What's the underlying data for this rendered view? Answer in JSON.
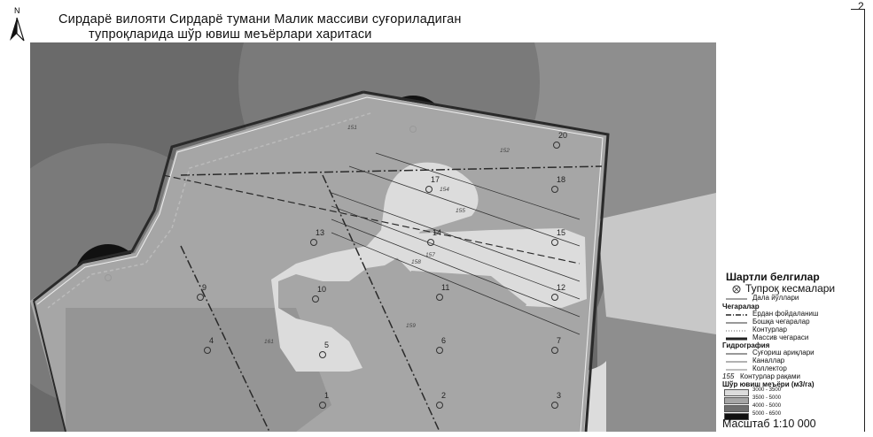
{
  "title": {
    "line1": "Сирдарё вилояти Сирдарё тумани Малик массиви суғориладиган",
    "line2": "тупроқларида шўр ювиш меъёрлари харитаси"
  },
  "north_label": "N",
  "page_number": "2",
  "map": {
    "point_labels": [
      "1",
      "2",
      "3",
      "4",
      "5",
      "6",
      "7",
      "9",
      "10",
      "11",
      "12",
      "13",
      "14",
      "15",
      "17",
      "18",
      "20"
    ],
    "contour_labels": [
      "151",
      "152",
      "154",
      "155",
      "157",
      "158",
      "159",
      "161"
    ],
    "fills": {
      "background": "#6a6a6a",
      "zone_light": "#dcdcdc",
      "zone_medium": "#a6a6a6",
      "zone_dark": "#6e6e6e",
      "zone_black": "#111111"
    }
  },
  "legend": {
    "title": "Шартли белгилар",
    "items": {
      "soil_pits": "Тупроқ кесмалари",
      "field_roads": "Дала йўллари"
    },
    "boundaries_header": "Чегаралар",
    "boundaries": [
      "Ердан фойдаланиш",
      "Бошқа чегаралар",
      "Контурлар",
      "Массив чегараси"
    ],
    "hydrography_header": "Гидрография",
    "hydrography": [
      "Суғориш ариқлари",
      "Каналлар",
      "Коллектор"
    ],
    "contour_number_sample": "155",
    "contour_number_label": "Контурлар рақами",
    "norms_header": "Шўр ювиш меъёри (м3/га)",
    "norms": [
      {
        "label": "3000 - 3500",
        "color": "#dcdcdc"
      },
      {
        "label": "3500 - 5000",
        "color": "#a6a6a6"
      },
      {
        "label": "4000 - 5000",
        "color": "#6e6e6e"
      },
      {
        "label": "5000 - 6500",
        "color": "#111111"
      }
    ]
  },
  "scale": "Масштаб 1:10 000"
}
